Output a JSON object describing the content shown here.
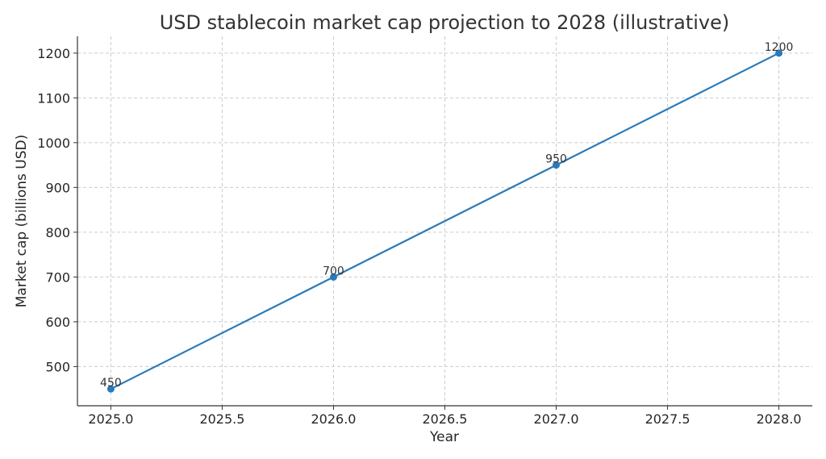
{
  "chart_data": {
    "type": "line",
    "title": "USD stablecoin market cap projection to 2028 (illustrative)",
    "xlabel": "Year",
    "ylabel": "Market cap (billions USD)",
    "x": [
      2025,
      2026,
      2027,
      2028
    ],
    "series": [
      {
        "values": [
          450,
          700,
          950,
          1200
        ]
      }
    ],
    "data_labels": [
      "450",
      "700",
      "950",
      "1200"
    ],
    "xticks": [
      2025.0,
      2025.5,
      2026.0,
      2026.5,
      2027.0,
      2027.5,
      2028.0
    ],
    "xtick_labels": [
      "2025.0",
      "2025.5",
      "2026.0",
      "2026.5",
      "2027.0",
      "2027.5",
      "2028.0"
    ],
    "yticks": [
      500,
      600,
      700,
      800,
      900,
      1000,
      1100,
      1200
    ],
    "ytick_labels": [
      "500",
      "600",
      "700",
      "800",
      "900",
      "1000",
      "1100",
      "1200"
    ],
    "xlim": [
      2024.85,
      2028.15
    ],
    "ylim": [
      412.5,
      1237.5
    ],
    "grid": true,
    "color": "#2a7ab9"
  }
}
